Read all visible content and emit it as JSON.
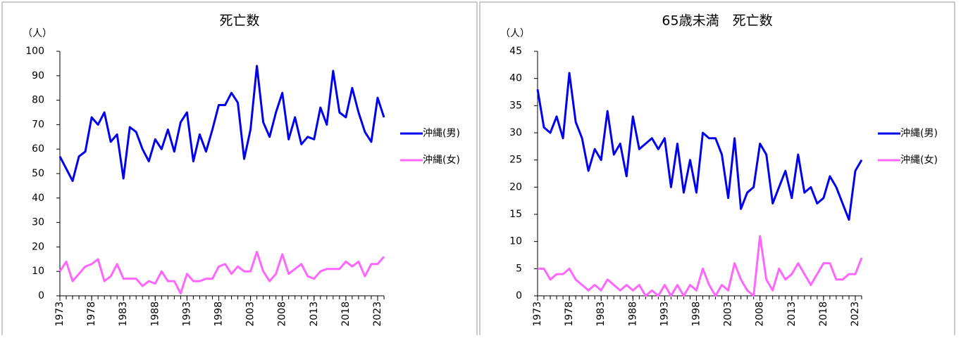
{
  "chart_data": [
    {
      "type": "line",
      "title": "死亡数",
      "y_unit": "（人）",
      "x": [
        1973,
        1974,
        1975,
        1976,
        1977,
        1978,
        1979,
        1980,
        1981,
        1982,
        1983,
        1984,
        1985,
        1986,
        1987,
        1988,
        1989,
        1990,
        1991,
        1992,
        1993,
        1994,
        1995,
        1996,
        1997,
        1998,
        1999,
        2000,
        2001,
        2002,
        2003,
        2004,
        2005,
        2006,
        2007,
        2008,
        2009,
        2010,
        2011,
        2012,
        2013,
        2014,
        2015,
        2016,
        2017,
        2018,
        2019,
        2020,
        2021,
        2022,
        2023,
        2024
      ],
      "series": [
        {
          "name": "沖縄(男)",
          "color": "#0000ee",
          "values": [
            57,
            52,
            47,
            57,
            59,
            73,
            70,
            75,
            63,
            66,
            48,
            69,
            67,
            60,
            55,
            64,
            60,
            68,
            59,
            71,
            75,
            55,
            66,
            59,
            68,
            78,
            78,
            83,
            79,
            56,
            68,
            94,
            71,
            65,
            75,
            83,
            64,
            73,
            62,
            65,
            64,
            77,
            70,
            92,
            75,
            73,
            85,
            75,
            67,
            63,
            81,
            73
          ]
        },
        {
          "name": "沖縄(女)",
          "color": "#ff66ff",
          "values": [
            10,
            14,
            6,
            9,
            12,
            13,
            15,
            6,
            8,
            13,
            7,
            7,
            7,
            4,
            6,
            5,
            10,
            6,
            6,
            1,
            9,
            6,
            6,
            7,
            7,
            12,
            13,
            9,
            12,
            10,
            10,
            18,
            10,
            6,
            9,
            17,
            9,
            11,
            13,
            8,
            7,
            10,
            11,
            11,
            11,
            14,
            12,
            14,
            8,
            13,
            13,
            16
          ]
        }
      ],
      "xlim": [
        1973,
        2024
      ],
      "xticks": [
        1973,
        1978,
        1983,
        1988,
        1993,
        1998,
        2003,
        2008,
        2013,
        2018,
        2023
      ],
      "ylim": [
        0,
        100
      ],
      "yticks": [
        0,
        10,
        20,
        30,
        40,
        50,
        60,
        70,
        80,
        90,
        100
      ],
      "legend": "right"
    },
    {
      "type": "line",
      "title": "65歳未満　死亡数",
      "y_unit": "（人）",
      "x": [
        1973,
        1974,
        1975,
        1976,
        1977,
        1978,
        1979,
        1980,
        1981,
        1982,
        1983,
        1984,
        1985,
        1986,
        1987,
        1988,
        1989,
        1990,
        1991,
        1992,
        1993,
        1994,
        1995,
        1996,
        1997,
        1998,
        1999,
        2000,
        2001,
        2002,
        2003,
        2004,
        2005,
        2006,
        2007,
        2008,
        2009,
        2010,
        2011,
        2012,
        2013,
        2014,
        2015,
        2016,
        2017,
        2018,
        2019,
        2020,
        2021,
        2022,
        2023,
        2024
      ],
      "series": [
        {
          "name": "沖縄(男)",
          "color": "#0000ee",
          "values": [
            38,
            31,
            30,
            33,
            29,
            41,
            32,
            29,
            23,
            27,
            25,
            34,
            26,
            28,
            22,
            33,
            27,
            28,
            29,
            27,
            29,
            20,
            28,
            19,
            25,
            19,
            30,
            29,
            29,
            26,
            18,
            29,
            16,
            19,
            20,
            28,
            26,
            17,
            20,
            23,
            18,
            26,
            19,
            20,
            17,
            18,
            22,
            20,
            17,
            14,
            23,
            25
          ]
        },
        {
          "name": "沖縄(女)",
          "color": "#ff66ff",
          "values": [
            5,
            5,
            3,
            4,
            4,
            5,
            3,
            2,
            1,
            2,
            1,
            3,
            2,
            1,
            2,
            1,
            2,
            0,
            1,
            0,
            2,
            0,
            2,
            0,
            2,
            1,
            5,
            2,
            0,
            2,
            1,
            6,
            3,
            1,
            0,
            11,
            3,
            1,
            5,
            3,
            4,
            6,
            4,
            2,
            4,
            6,
            6,
            3,
            3,
            4,
            4,
            7
          ]
        }
      ],
      "xlim": [
        1973,
        2024
      ],
      "xticks": [
        1973,
        1978,
        1983,
        1988,
        1993,
        1998,
        2003,
        2008,
        2013,
        2018,
        2023
      ],
      "ylim": [
        0,
        45
      ],
      "yticks": [
        0,
        5,
        10,
        15,
        20,
        25,
        30,
        35,
        40,
        45
      ],
      "legend": "right"
    }
  ]
}
